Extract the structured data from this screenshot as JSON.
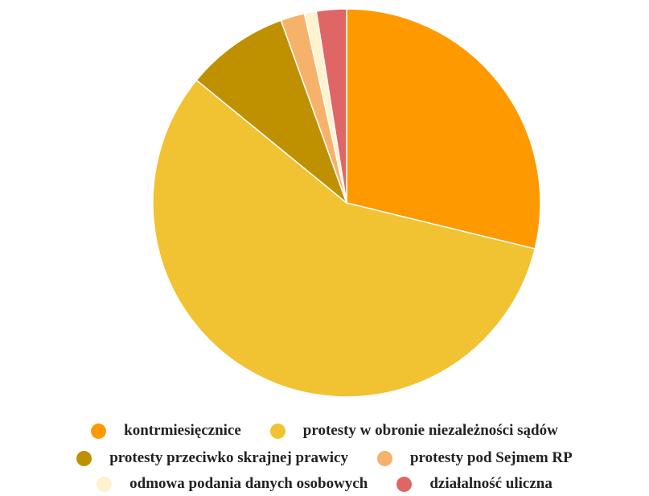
{
  "chart_data": {
    "type": "pie",
    "categories": [
      "kontrmiesięcznice",
      "protesty w obronie niezależności sądów",
      "protesty przeciwko skrajnej prawicy",
      "protesty pod Sejmem RP",
      "odmowa podania danych osobowych",
      "działalność uliczna"
    ],
    "values": [
      28.8,
      57.1,
      8.6,
      2.0,
      1.0,
      2.5
    ],
    "colors": [
      "#FF9900",
      "#F1C232",
      "#BF9000",
      "#F6B26B",
      "#FFF2CC",
      "#E06666"
    ],
    "legend": "bottom"
  }
}
